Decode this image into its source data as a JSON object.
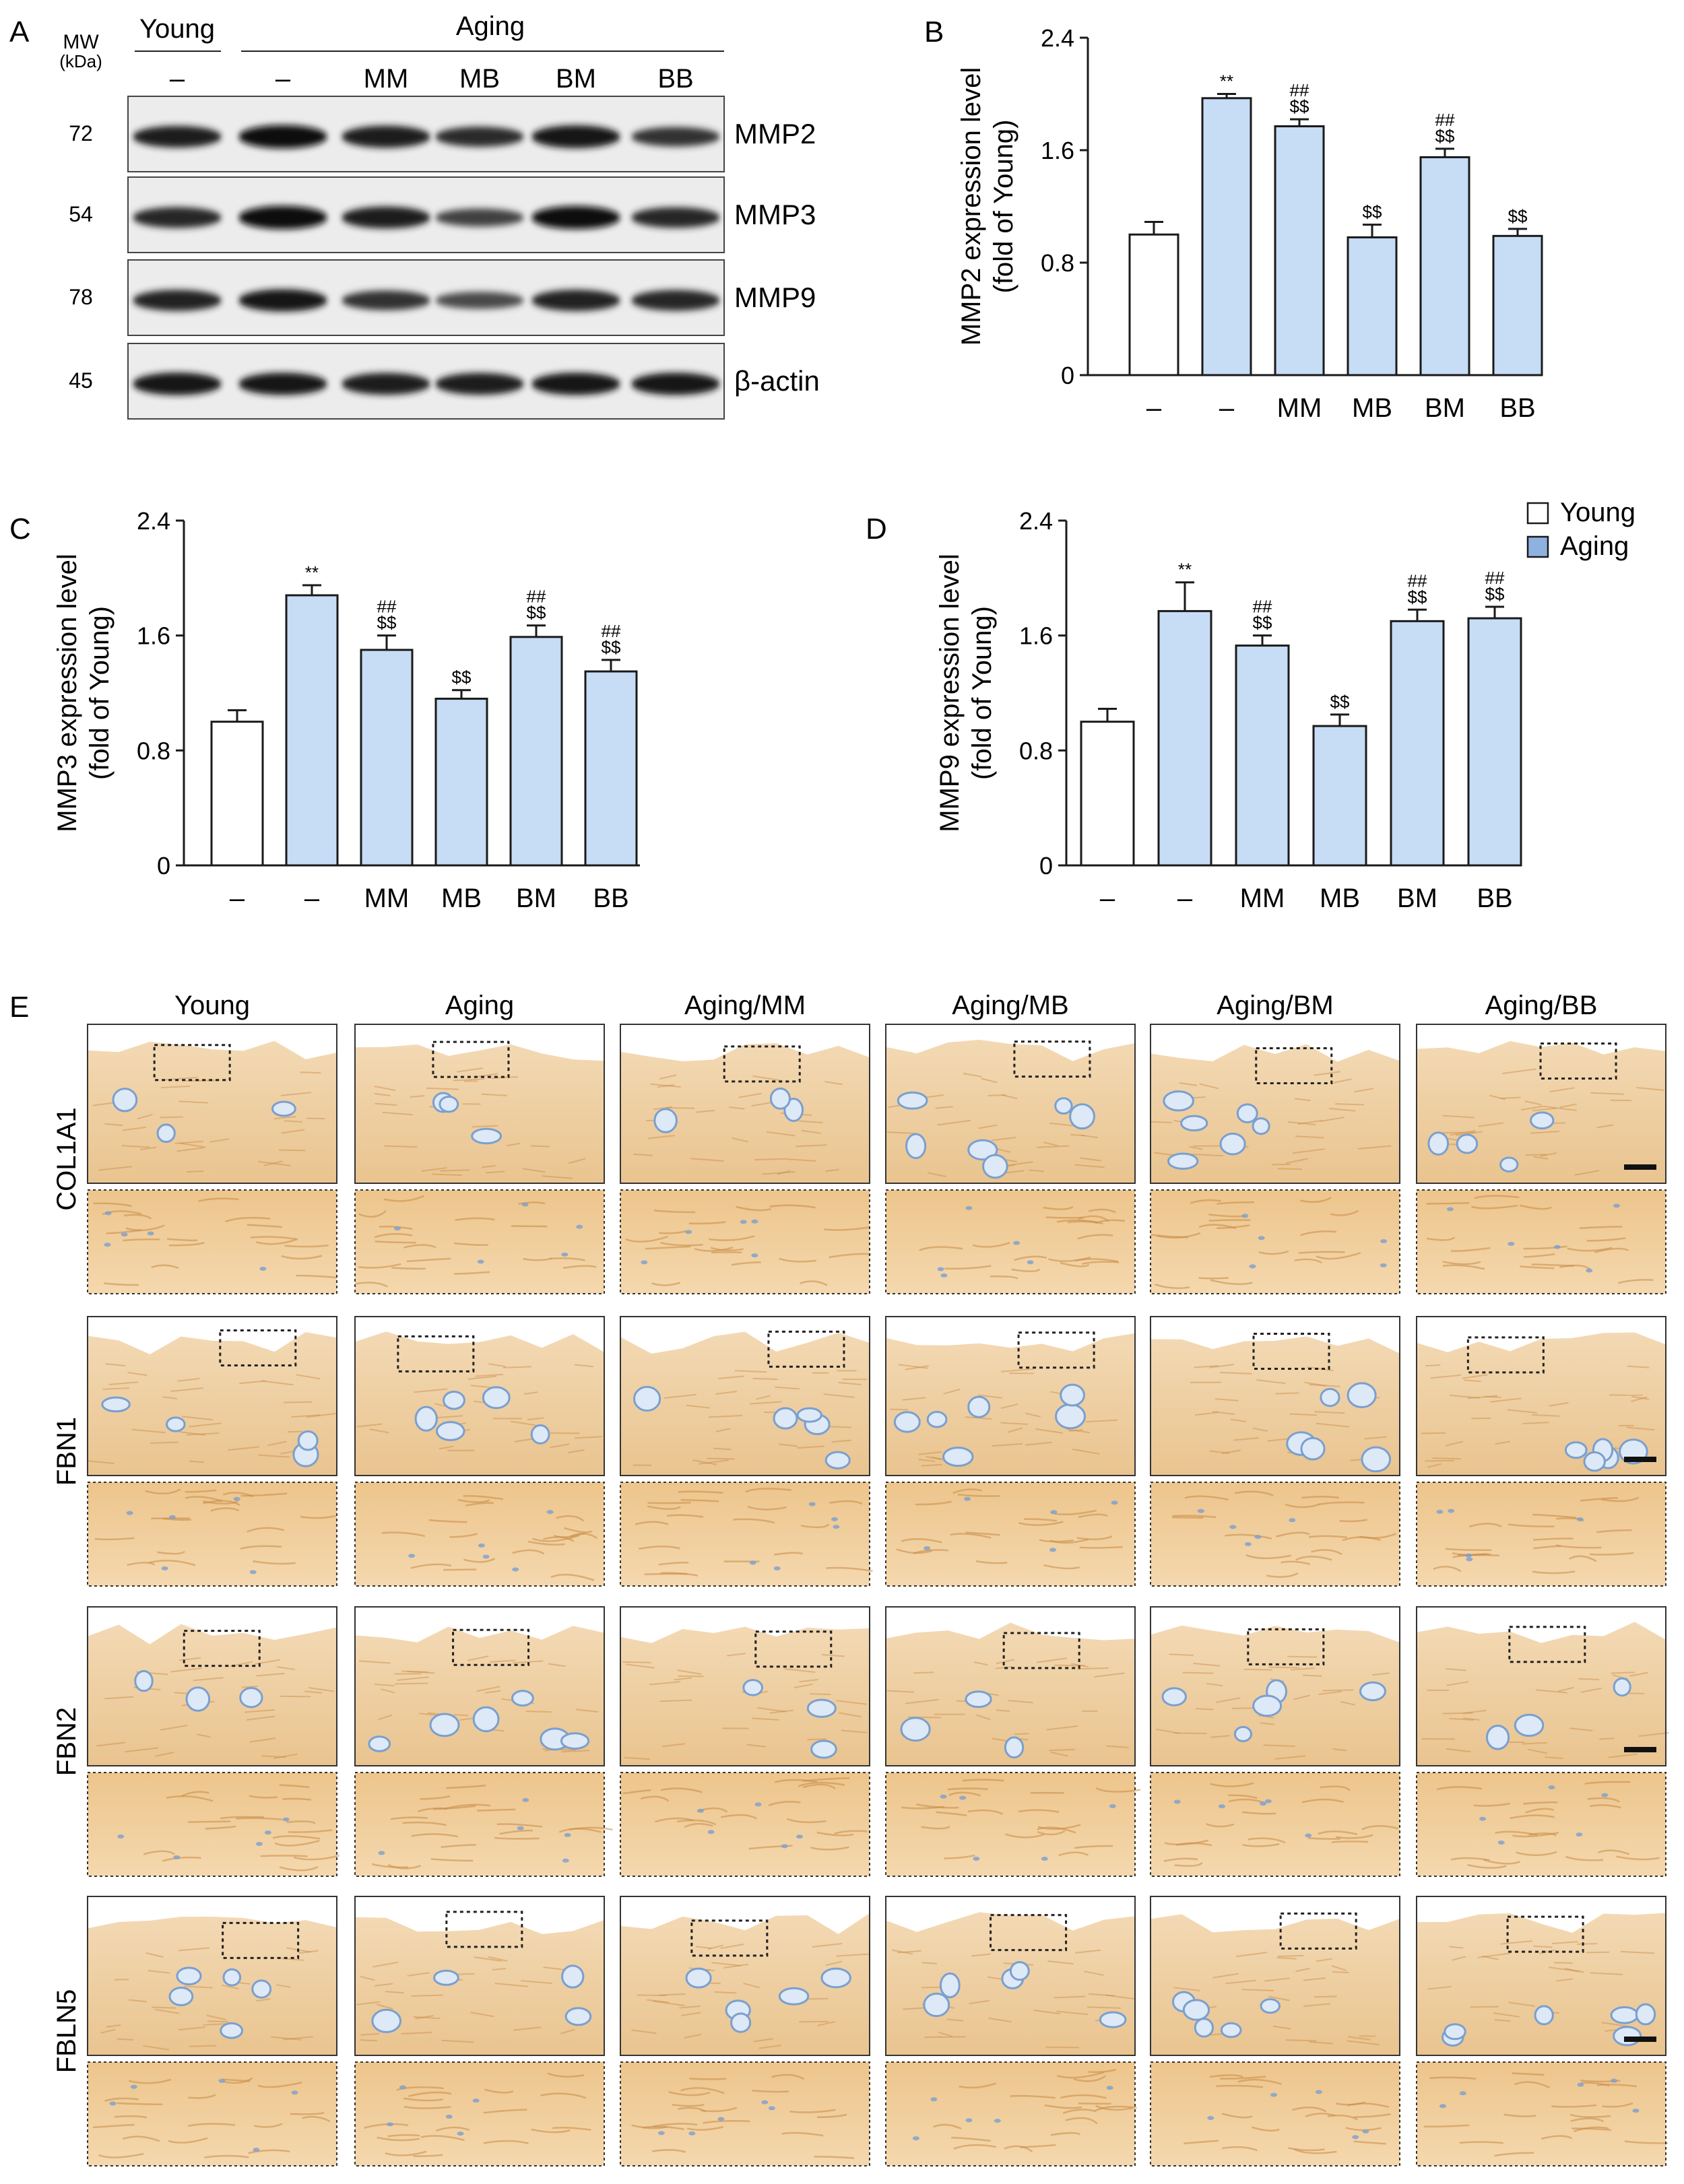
{
  "colors": {
    "young_fill": "#ffffff",
    "aging_fill": "#c7dcf5",
    "legend_aging": "#8fb1e0",
    "bar_stroke": "#1a1a1a",
    "stain": "#e6b477",
    "stain_dark": "#c98a45",
    "nuclei": "#7a9fcf"
  },
  "panels": {
    "a": "A",
    "b": "B",
    "c": "C",
    "d": "D",
    "e": "E"
  },
  "western": {
    "mw_label": "MW",
    "kda_label": "(kDa)",
    "young_header": "Young",
    "aging_header": "Aging",
    "lanes": [
      "–",
      "–",
      "MM",
      "MB",
      "BM",
      "BB"
    ],
    "blots": [
      {
        "mw": "72",
        "protein": "MMP2",
        "intensity": [
          0.78,
          0.92,
          0.82,
          0.66,
          0.88,
          0.6
        ]
      },
      {
        "mw": "54",
        "protein": "MMP3",
        "intensity": [
          0.72,
          0.92,
          0.8,
          0.48,
          0.9,
          0.7
        ]
      },
      {
        "mw": "78",
        "protein": "MMP9",
        "intensity": [
          0.74,
          0.84,
          0.62,
          0.42,
          0.76,
          0.72
        ]
      },
      {
        "mw": "45",
        "protein": "β-actin",
        "intensity": [
          0.86,
          0.84,
          0.8,
          0.8,
          0.84,
          0.84
        ]
      }
    ]
  },
  "chart_data": [
    {
      "type": "bar",
      "panel": "B",
      "ylabel": "MMP2 expression level",
      "ylabel2": "(fold of Young)",
      "ylim": [
        0,
        2.4
      ],
      "yticks": [
        "0",
        "0.8",
        "1.6",
        "2.4"
      ],
      "categories": [
        "–",
        "–",
        "MM",
        "MB",
        "BM",
        "BB"
      ],
      "groups": [
        "Young",
        "Aging",
        "Aging",
        "Aging",
        "Aging",
        "Aging"
      ],
      "values": [
        1.0,
        1.97,
        1.77,
        0.98,
        1.55,
        0.99
      ],
      "errors": [
        0.09,
        0.03,
        0.05,
        0.09,
        0.06,
        0.05
      ],
      "annotations": [
        [],
        [
          "**"
        ],
        [
          "##",
          "$$"
        ],
        [
          "$$"
        ],
        [
          "##",
          "$$"
        ],
        [
          "$$"
        ]
      ]
    },
    {
      "type": "bar",
      "panel": "C",
      "ylabel": "MMP3 expression level",
      "ylabel2": "(fold of Young)",
      "ylim": [
        0,
        2.4
      ],
      "yticks": [
        "0",
        "0.8",
        "1.6",
        "2.4"
      ],
      "categories": [
        "–",
        "–",
        "MM",
        "MB",
        "BM",
        "BB"
      ],
      "groups": [
        "Young",
        "Aging",
        "Aging",
        "Aging",
        "Aging",
        "Aging"
      ],
      "values": [
        1.0,
        1.88,
        1.5,
        1.16,
        1.59,
        1.35
      ],
      "errors": [
        0.08,
        0.07,
        0.1,
        0.06,
        0.08,
        0.08
      ],
      "annotations": [
        [],
        [
          "**"
        ],
        [
          "##",
          "$$"
        ],
        [
          "$$"
        ],
        [
          "##",
          "$$"
        ],
        [
          "##",
          "$$"
        ]
      ]
    },
    {
      "type": "bar",
      "panel": "D",
      "ylabel": "MMP9 expression level",
      "ylabel2": "(fold of Young)",
      "ylim": [
        0,
        2.4
      ],
      "yticks": [
        "0",
        "0.8",
        "1.6",
        "2.4"
      ],
      "categories": [
        "–",
        "–",
        "MM",
        "MB",
        "BM",
        "BB"
      ],
      "groups": [
        "Young",
        "Aging",
        "Aging",
        "Aging",
        "Aging",
        "Aging"
      ],
      "values": [
        1.0,
        1.77,
        1.53,
        0.97,
        1.7,
        1.72
      ],
      "errors": [
        0.09,
        0.2,
        0.07,
        0.08,
        0.08,
        0.08
      ],
      "annotations": [
        [],
        [
          "**"
        ],
        [
          "##",
          "$$"
        ],
        [
          "$$"
        ],
        [
          "##",
          "$$"
        ],
        [
          "##",
          "$$"
        ]
      ]
    }
  ],
  "legend": {
    "young": "Young",
    "aging": "Aging"
  },
  "histology": {
    "columns": [
      "Young",
      "Aging",
      "Aging/MM",
      "Aging/MB",
      "Aging/BM",
      "Aging/BB"
    ],
    "rows": [
      "COL1A1",
      "FBN1",
      "FBN2",
      "FBLN5"
    ]
  }
}
